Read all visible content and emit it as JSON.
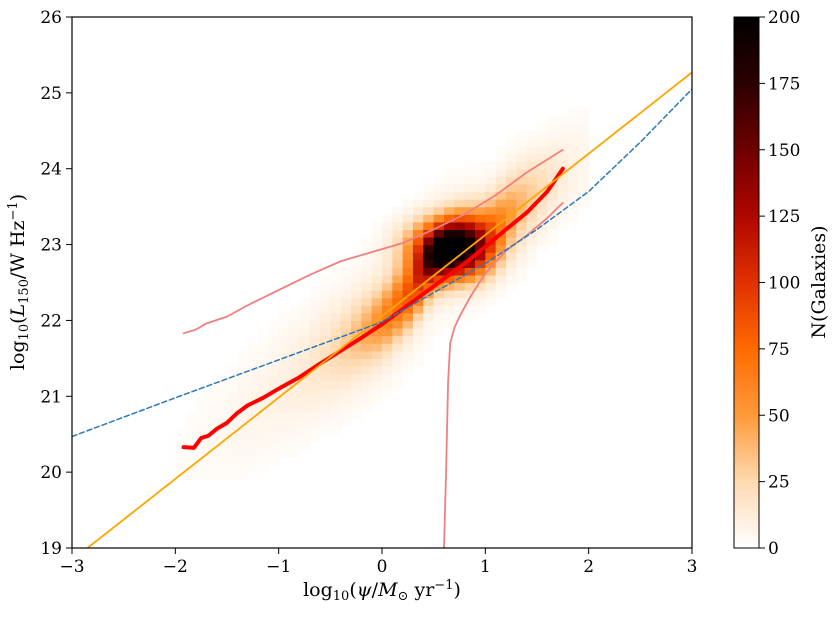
{
  "chart_data": {
    "type": "heatmap",
    "title": "",
    "xlabel": "log10(ψ/M⊙ yr−1)",
    "ylabel": "log10(L150/W Hz−1)",
    "xlim": [
      -3,
      3
    ],
    "ylim": [
      19,
      26
    ],
    "x_ticks": [
      -3,
      -2,
      -1,
      0,
      1,
      2,
      3
    ],
    "x_tick_labels": [
      "−3",
      "−2",
      "−1",
      "0",
      "1",
      "2",
      "3"
    ],
    "y_ticks": [
      19,
      20,
      21,
      22,
      23,
      24,
      25,
      26
    ],
    "y_tick_labels": [
      "19",
      "20",
      "21",
      "22",
      "23",
      "24",
      "25",
      "26"
    ],
    "grid": false,
    "colorbar": {
      "label": "N(Galaxies)",
      "range": [
        0,
        200
      ],
      "ticks": [
        0,
        25,
        50,
        75,
        100,
        125,
        150,
        175,
        200
      ],
      "tick_labels": [
        "0",
        "25",
        "50",
        "75",
        "100",
        "125",
        "150",
        "175",
        "200"
      ],
      "colormap": "gist_heat_r",
      "colors": [
        "#ffffff",
        "#ffd9b0",
        "#ff9a3a",
        "#ff6a00",
        "#e13100",
        "#b00600",
        "#6e0000",
        "#2d0000",
        "#000000"
      ]
    },
    "density_ridge": {
      "description_points": [
        [
          -1.9,
          20.3
        ],
        [
          -1.5,
          20.6
        ],
        [
          -1.0,
          21.1
        ],
        [
          -0.5,
          21.55
        ],
        [
          0.0,
          22.0
        ],
        [
          0.3,
          22.4
        ],
        [
          0.5,
          22.8
        ],
        [
          0.7,
          23.0
        ],
        [
          1.0,
          23.1
        ],
        [
          1.3,
          23.5
        ],
        [
          1.7,
          23.9
        ]
      ],
      "peak": [
        0.65,
        22.95
      ],
      "peak_count": 200
    },
    "series": [
      {
        "name": "",
        "style": "thick-solid",
        "color": "#ff0000",
        "x": [
          -1.92,
          -1.82,
          -1.75,
          -1.68,
          -1.6,
          -1.5,
          -1.4,
          -1.3,
          -1.15,
          -1.0,
          -0.8,
          -0.6,
          -0.4,
          -0.2,
          0.0,
          0.2,
          0.4,
          0.6,
          0.8,
          1.0,
          1.2,
          1.4,
          1.6,
          1.75
        ],
        "y": [
          20.33,
          20.32,
          20.45,
          20.48,
          20.57,
          20.65,
          20.78,
          20.88,
          20.98,
          21.1,
          21.25,
          21.43,
          21.6,
          21.77,
          21.95,
          22.15,
          22.35,
          22.55,
          22.75,
          22.97,
          23.2,
          23.42,
          23.7,
          24.0
        ]
      },
      {
        "name": "",
        "style": "thin-solid",
        "color": "#f08080",
        "x": [
          -1.92,
          -1.8,
          -1.7,
          -1.5,
          -1.3,
          -1.0,
          -0.7,
          -0.4,
          -0.1,
          0.2,
          0.5,
          0.8,
          1.1,
          1.4,
          1.75
        ],
        "y": [
          21.83,
          21.88,
          21.96,
          22.05,
          22.2,
          22.4,
          22.6,
          22.78,
          22.9,
          23.02,
          23.2,
          23.4,
          23.65,
          23.95,
          24.25
        ]
      },
      {
        "name": "",
        "style": "thin-solid",
        "color": "#f08080",
        "x": [
          0.6,
          0.62,
          0.64,
          0.66,
          0.7,
          0.75,
          0.85,
          1.0,
          1.2,
          1.4,
          1.6,
          1.75
        ],
        "y": [
          19.0,
          20.0,
          21.2,
          21.7,
          21.9,
          22.05,
          22.3,
          22.62,
          22.92,
          23.12,
          23.35,
          23.55
        ]
      },
      {
        "name": "",
        "style": "thin-solid",
        "color": "#ffa500",
        "x": [
          -2.85,
          3.0
        ],
        "y": [
          19.0,
          25.27
        ]
      },
      {
        "name": "",
        "style": "dashed",
        "color": "#2e79b5",
        "x": [
          -3.0,
          -2.0,
          -1.0,
          0.0,
          1.0,
          1.5,
          2.0,
          2.5,
          3.0
        ],
        "y": [
          20.47,
          20.98,
          21.48,
          21.98,
          22.75,
          23.2,
          23.7,
          24.35,
          25.05
        ]
      }
    ]
  }
}
